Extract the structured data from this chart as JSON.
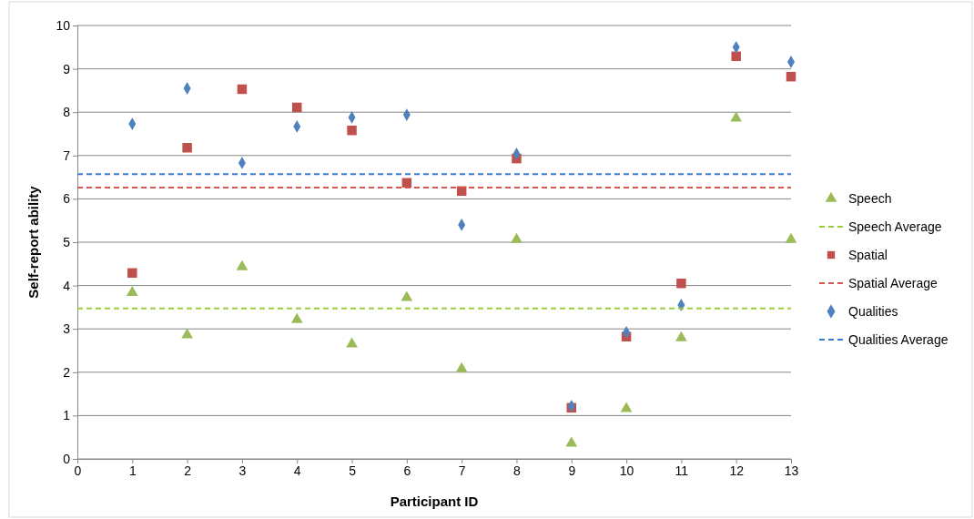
{
  "chart_data": {
    "type": "scatter",
    "xlabel": "Participant ID",
    "ylabel": "Self-report ability",
    "x": [
      1,
      2,
      3,
      4,
      5,
      6,
      7,
      8,
      9,
      10,
      11,
      12,
      13
    ],
    "xlim": [
      0,
      13
    ],
    "xticks": [
      0,
      1,
      2,
      3,
      4,
      5,
      6,
      7,
      8,
      9,
      10,
      11,
      12,
      13
    ],
    "ylim": [
      0,
      10
    ],
    "yticks": [
      0,
      1,
      2,
      3,
      4,
      5,
      6,
      7,
      8,
      9,
      10
    ],
    "grid": "y",
    "legend": "right",
    "series": [
      {
        "name": "Speech",
        "marker": "triangle",
        "color": "#9bbb59",
        "values": [
          3.84,
          2.86,
          4.43,
          3.21,
          2.65,
          3.72,
          2.08,
          5.06,
          0.36,
          1.16,
          2.79,
          7.86,
          5.06
        ]
      },
      {
        "name": "Spatial",
        "marker": "square",
        "color": "#c0504d",
        "values": [
          4.29,
          7.18,
          8.53,
          8.11,
          7.58,
          6.37,
          6.18,
          6.93,
          1.18,
          2.82,
          4.05,
          9.29,
          8.82
        ]
      },
      {
        "name": "Qualities",
        "marker": "diamond",
        "color": "#4f81bd",
        "values": [
          7.73,
          8.55,
          6.83,
          7.67,
          7.88,
          7.94,
          5.4,
          7.04,
          1.22,
          2.92,
          3.55,
          9.5,
          9.16
        ]
      }
    ],
    "ref_lines": [
      {
        "axis": "y",
        "value": 3.47,
        "label": "Speech Average",
        "color": "#9bcc3c",
        "line_style": "dashed"
      },
      {
        "axis": "y",
        "value": 6.26,
        "label": "Spatial Average",
        "color": "#d9534f",
        "line_style": "dashed"
      },
      {
        "axis": "y",
        "value": 6.57,
        "label": "Qualities Average",
        "color": "#3a7bd5",
        "line_style": "dashed"
      }
    ]
  }
}
